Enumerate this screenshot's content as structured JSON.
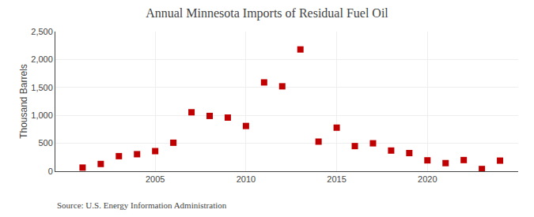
{
  "chart_data": {
    "type": "scatter",
    "title": "Annual Minnesota Imports of Residual Fuel Oil",
    "ylabel": "Thousand Barrels",
    "annotations": [
      "Source: U.S. Energy Information Administration"
    ],
    "x": [
      2001,
      2002,
      2003,
      2004,
      2005,
      2006,
      2007,
      2008,
      2009,
      2010,
      2011,
      2012,
      2013,
      2014,
      2015,
      2016,
      2017,
      2018,
      2019,
      2020,
      2021,
      2022,
      2023,
      2024
    ],
    "values": [
      65,
      130,
      270,
      305,
      360,
      510,
      1055,
      990,
      960,
      810,
      1590,
      1520,
      2180,
      530,
      780,
      450,
      500,
      370,
      325,
      195,
      145,
      200,
      40,
      190
    ],
    "color": "#c00000",
    "marker": "square",
    "xlim": [
      1999.5,
      2025
    ],
    "xticks": [
      2005,
      2010,
      2015,
      2020
    ],
    "ylim": [
      0,
      2500
    ],
    "yticks": [
      0,
      500,
      {
        "value": 1000,
        "label": "1,000"
      },
      {
        "value": 1500,
        "label": "1,500"
      },
      {
        "value": 2000,
        "label": "2,000"
      },
      {
        "value": 2500,
        "label": "2,500"
      }
    ],
    "grid": true
  }
}
